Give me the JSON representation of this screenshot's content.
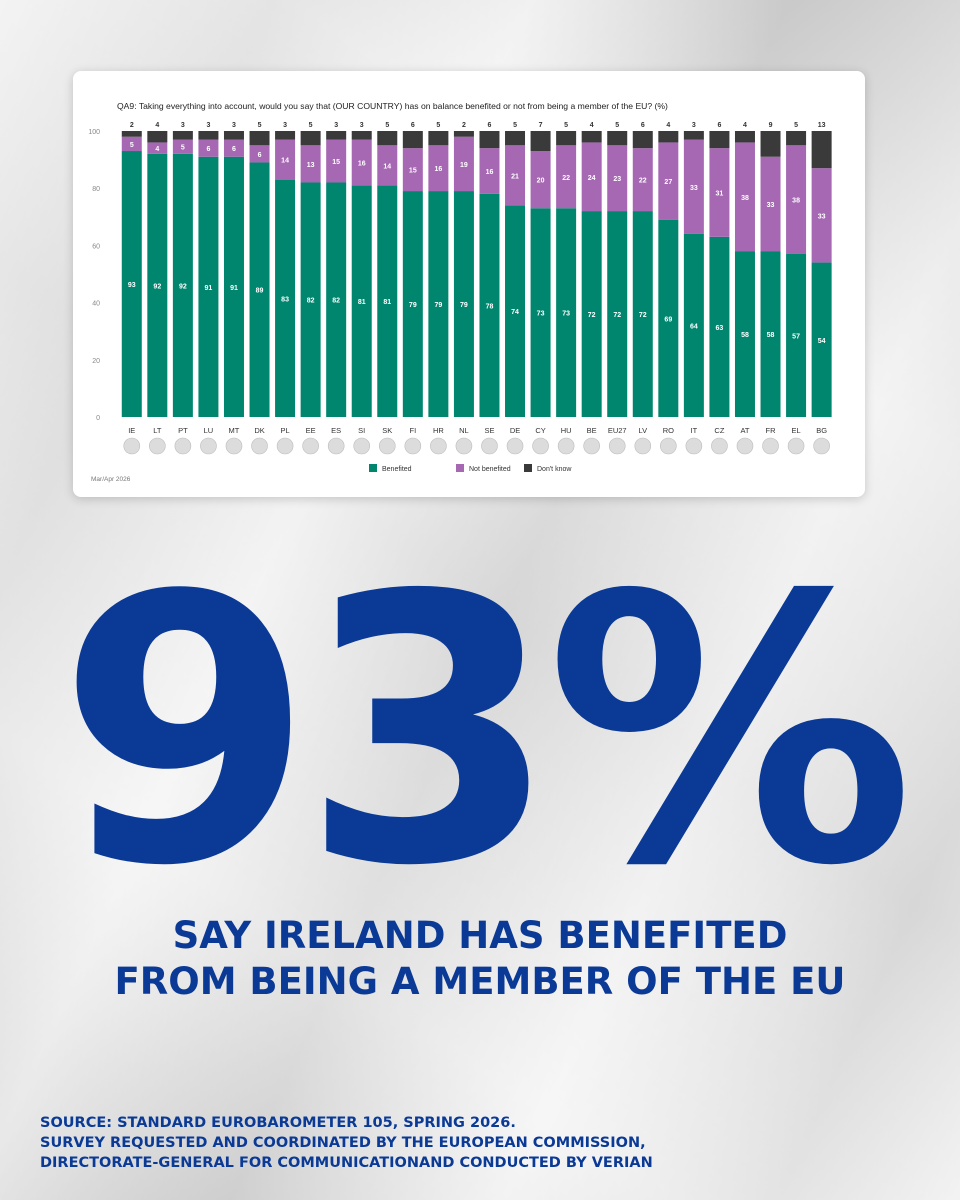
{
  "chart_data": {
    "type": "bar",
    "stacked": true,
    "title": "QA9: Taking everything into account, would you say that (OUR COUNTRY) has on balance benefited or not from being a member of the EU? (%)",
    "categories": [
      "IE",
      "LT",
      "PT",
      "LU",
      "MT",
      "DK",
      "PL",
      "EE",
      "ES",
      "SI",
      "SK",
      "FI",
      "HR",
      "NL",
      "SE",
      "DE",
      "CY",
      "HU",
      "BE",
      "EU27",
      "LV",
      "RO",
      "IT",
      "CZ",
      "AT",
      "FR",
      "EL",
      "BG"
    ],
    "series": [
      {
        "name": "Benefited",
        "color": "#00866e",
        "values": [
          93,
          92,
          92,
          91,
          91,
          89,
          83,
          82,
          82,
          81,
          81,
          79,
          79,
          79,
          78,
          74,
          73,
          73,
          72,
          72,
          72,
          69,
          64,
          63,
          58,
          58,
          57,
          54
        ]
      },
      {
        "name": "Not benefited",
        "color": "#a668b3",
        "values": [
          5,
          4,
          5,
          6,
          6,
          6,
          14,
          13,
          15,
          16,
          14,
          15,
          16,
          19,
          16,
          21,
          20,
          22,
          24,
          23,
          22,
          27,
          33,
          31,
          38,
          33,
          38,
          33
        ]
      },
      {
        "name": "Don't know",
        "color": "#3a3a3a",
        "values": [
          2,
          4,
          3,
          3,
          3,
          5,
          3,
          5,
          3,
          3,
          5,
          6,
          5,
          2,
          6,
          5,
          7,
          5,
          4,
          5,
          6,
          4,
          3,
          6,
          4,
          9,
          5,
          13
        ]
      }
    ],
    "yticks": [
      0,
      20,
      40,
      60,
      80,
      100
    ],
    "ylim": [
      0,
      100
    ],
    "legend_position": "bottom",
    "footnote": "Mar/Apr 2026"
  },
  "headline": {
    "number": "93%",
    "line1": "SAY IRELAND HAS BENEFITED",
    "line2": "FROM BEING A MEMBER OF THE EU"
  },
  "source": {
    "line1": "SOURCE: STANDARD EUROBAROMETER 105, SPRING 2026.",
    "line2": "SURVEY REQUESTED AND COORDINATED BY THE EUROPEAN COMMISSION,",
    "line3": "DIRECTORATE-GENERAL FOR COMMUNICATIONAND CONDUCTED BY VERIAN"
  }
}
